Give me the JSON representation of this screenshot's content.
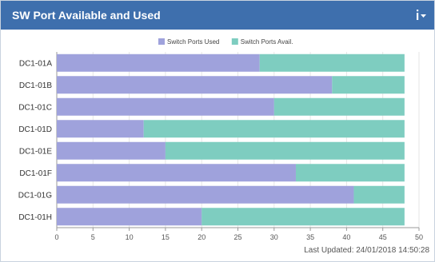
{
  "widget": {
    "title": "SW Port Available and Used",
    "menu_icon": "info-dropdown-icon",
    "header_color": "#3e6fad",
    "last_updated": "Last Updated: 24/01/2018 14:50:28"
  },
  "chart_data": {
    "type": "bar",
    "orientation": "horizontal",
    "stacked": true,
    "categories": [
      "DC1-01A",
      "DC1-01B",
      "DC1-01C",
      "DC1-01D",
      "DC1-01E",
      "DC1-01F",
      "DC1-01G",
      "DC1-01H"
    ],
    "series": [
      {
        "name": "Switch Ports Used",
        "color": "#9fa2dc",
        "values": [
          28,
          38,
          30,
          12,
          15,
          33,
          41,
          20
        ]
      },
      {
        "name": "Switch Ports Avail.",
        "color": "#7ecdc0",
        "values": [
          20,
          10,
          18,
          36,
          33,
          15,
          7,
          28
        ]
      }
    ],
    "xlim": [
      0,
      50
    ],
    "xticks": [
      0,
      5,
      10,
      15,
      20,
      25,
      30,
      35,
      40,
      45,
      50
    ],
    "grid": true,
    "legend_position": "top-center",
    "title": "",
    "xlabel": "",
    "ylabel": ""
  }
}
